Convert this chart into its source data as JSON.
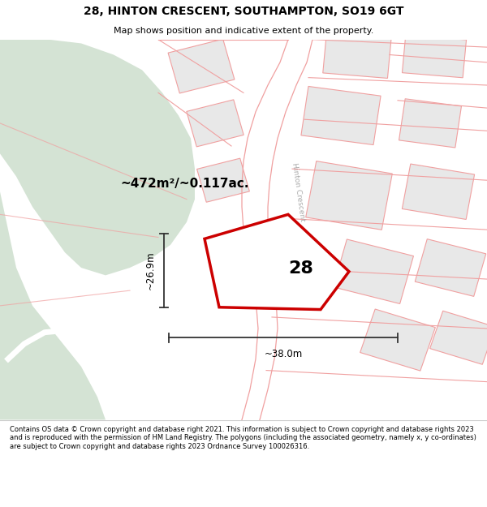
{
  "title": "28, HINTON CRESCENT, SOUTHAMPTON, SO19 6GT",
  "subtitle": "Map shows position and indicative extent of the property.",
  "footer": "Contains OS data © Crown copyright and database right 2021. This information is subject to Crown copyright and database rights 2023 and is reproduced with the permission of HM Land Registry. The polygons (including the associated geometry, namely x, y co-ordinates) are subject to Crown copyright and database rights 2023 Ordnance Survey 100026316.",
  "area_label": "~472m²/~0.117ac.",
  "number_label": "28",
  "width_label": "~38.0m",
  "height_label": "~26.9m",
  "map_bg": "#ffffff",
  "green_color": "#d4e3d4",
  "building_fill": "#e8e8e8",
  "highlight_color": "#cc0000",
  "pink_line_color": "#f0a0a0",
  "road_label_color": "#aaaaaa",
  "measure_color": "#333333"
}
